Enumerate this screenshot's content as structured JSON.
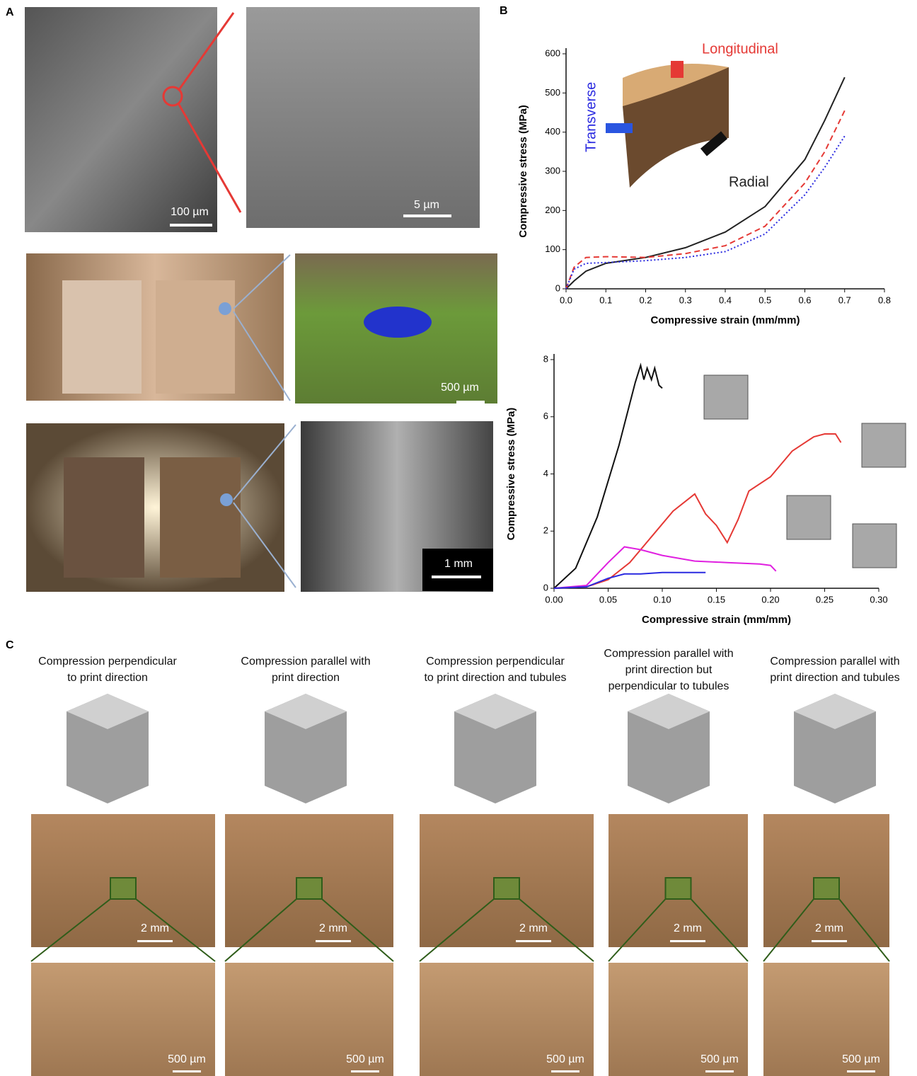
{
  "panel_labels": [
    "A",
    "B",
    "C"
  ],
  "panel_a_scale": [
    "100 µm",
    "5 µm",
    "500 µm",
    "1 mm"
  ],
  "panel_c": {
    "captions": [
      [
        "Compression perpendicular",
        "to print direction"
      ],
      [
        "Compression parallel with",
        "print direction"
      ],
      [
        "Compression perpendicular",
        "to print direction and tubules"
      ],
      [
        "Compression parallel with",
        "print direction but",
        "perpendicular to tubules"
      ],
      [
        "Compression parallel with",
        "print direction and tubules"
      ]
    ],
    "scale_top": [
      "2 mm",
      "2 mm",
      "2 mm",
      "2 mm",
      "2 mm"
    ],
    "scale_bottom": [
      "500 µm",
      "500 µm",
      "500 µm",
      "500 µm",
      "500 µm"
    ]
  },
  "chart_data": [
    {
      "type": "line",
      "xlabel": "Compressive strain (mm/mm)",
      "ylabel": "Compressive stress (MPa)",
      "x": [
        0,
        0.02,
        0.05,
        0.1,
        0.2,
        0.3,
        0.4,
        0.5,
        0.6,
        0.65,
        0.7
      ],
      "series": [
        {
          "name": "Radial",
          "color": "#222222",
          "style": "solid",
          "values": [
            0,
            20,
            45,
            65,
            80,
            105,
            145,
            210,
            330,
            430,
            540
          ]
        },
        {
          "name": "Longitudinal",
          "color": "#e53935",
          "style": "dashed",
          "values": [
            0,
            55,
            80,
            82,
            80,
            90,
            110,
            160,
            270,
            350,
            455
          ]
        },
        {
          "name": "Transverse",
          "color": "#2a2ae0",
          "style": "dotted",
          "values": [
            0,
            50,
            65,
            67,
            72,
            80,
            95,
            140,
            240,
            310,
            390
          ]
        }
      ],
      "xlim": [
        0,
        0.8
      ],
      "xticks": [
        {
          "value": 0,
          "label": "0.0"
        },
        0.1,
        0.2,
        0.3,
        0.4,
        0.5,
        0.6,
        0.7,
        0.8
      ],
      "ylim": [
        0,
        600
      ],
      "yticks": [
        0,
        100,
        200,
        300,
        400,
        500,
        600
      ]
    },
    {
      "type": "line",
      "xlabel": "Compressive strain (mm/mm)",
      "ylabel": "Compressive stress (MPa)",
      "series": [
        {
          "color": "#111111",
          "style": "solid",
          "x": [
            0,
            0.02,
            0.04,
            0.06,
            0.075,
            0.08,
            0.083,
            0.086,
            0.09,
            0.093,
            0.097,
            0.1
          ],
          "values": [
            0,
            0.7,
            2.5,
            5,
            7.2,
            7.8,
            7.3,
            7.7,
            7.3,
            7.7,
            7.1,
            7.0
          ]
        },
        {
          "color": "#e53935",
          "style": "solid",
          "x": [
            0,
            0.03,
            0.05,
            0.07,
            0.09,
            0.11,
            0.13,
            0.14,
            0.15,
            0.16,
            0.17,
            0.18,
            0.2,
            0.22,
            0.24,
            0.25,
            0.26,
            0.265
          ],
          "values": [
            0,
            0.05,
            0.3,
            0.9,
            1.8,
            2.7,
            3.3,
            2.6,
            2.2,
            1.6,
            2.4,
            3.4,
            3.9,
            4.8,
            5.3,
            5.4,
            5.4,
            5.1
          ]
        },
        {
          "color": "#e020e0",
          "style": "solid",
          "x": [
            0,
            0.03,
            0.05,
            0.065,
            0.08,
            0.1,
            0.13,
            0.16,
            0.19,
            0.2,
            0.205
          ],
          "values": [
            0,
            0.1,
            0.9,
            1.45,
            1.35,
            1.15,
            0.95,
            0.9,
            0.85,
            0.8,
            0.6
          ]
        },
        {
          "color": "#2a2ae0",
          "style": "solid",
          "x": [
            0,
            0.03,
            0.05,
            0.065,
            0.08,
            0.1,
            0.12,
            0.14
          ],
          "values": [
            0,
            0.05,
            0.35,
            0.5,
            0.5,
            0.55,
            0.55,
            0.55
          ]
        }
      ],
      "xlim": [
        0,
        0.3
      ],
      "xticks": [
        {
          "value": 0,
          "label": "0.00"
        },
        {
          "value": 0.05,
          "label": "0.05"
        },
        {
          "value": 0.1,
          "label": "0.10"
        },
        {
          "value": 0.15,
          "label": "0.15"
        },
        {
          "value": 0.2,
          "label": "0.20"
        },
        {
          "value": 0.25,
          "label": "0.25"
        },
        {
          "value": 0.3,
          "label": "0.30"
        }
      ],
      "ylim": [
        0,
        8
      ],
      "yticks": [
        0,
        2,
        4,
        6,
        8
      ]
    }
  ]
}
